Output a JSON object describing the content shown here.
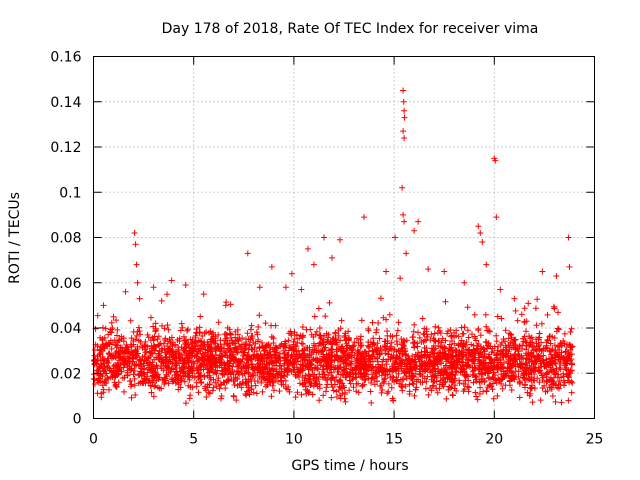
{
  "chart_data": {
    "type": "scatter",
    "title": "Day 178 of 2018, Rate Of TEC Index for receiver vima",
    "xlabel": "GPS time / hours",
    "ylabel": "ROTI / TECUs",
    "xlim": [
      0,
      25
    ],
    "ylim": [
      0,
      0.16
    ],
    "xticks": [
      0,
      5,
      10,
      15,
      20,
      25
    ],
    "xtick_labels": [
      "0",
      "5",
      "10",
      "15",
      "20",
      "25"
    ],
    "yticks": [
      0,
      0.02,
      0.04,
      0.06,
      0.08,
      0.1,
      0.12,
      0.14,
      0.16
    ],
    "ytick_labels": [
      "0",
      "0.02",
      "0.04",
      "0.06",
      "0.08",
      "0.1",
      "0.12",
      "0.14",
      "0.16"
    ],
    "grid": true,
    "marker": "+",
    "color": "#ff0000",
    "series": [
      {
        "name": "ROTI",
        "points": [
          [
            0.2,
            0.032
          ],
          [
            0.5,
            0.05
          ],
          [
            1.0,
            0.045
          ],
          [
            1.6,
            0.056
          ],
          [
            2.05,
            0.082
          ],
          [
            2.1,
            0.077
          ],
          [
            2.15,
            0.068
          ],
          [
            2.2,
            0.06
          ],
          [
            2.3,
            0.053
          ],
          [
            3.0,
            0.058
          ],
          [
            3.4,
            0.052
          ],
          [
            3.9,
            0.061
          ],
          [
            4.6,
            0.059
          ],
          [
            5.5,
            0.055
          ],
          [
            6.6,
            0.05
          ],
          [
            7.7,
            0.073
          ],
          [
            8.3,
            0.058
          ],
          [
            8.9,
            0.067
          ],
          [
            9.6,
            0.058
          ],
          [
            9.9,
            0.064
          ],
          [
            10.7,
            0.075
          ],
          [
            11.0,
            0.068
          ],
          [
            11.5,
            0.08
          ],
          [
            11.9,
            0.071
          ],
          [
            12.3,
            0.079
          ],
          [
            13.5,
            0.089
          ],
          [
            14.6,
            0.065
          ],
          [
            15.05,
            0.08
          ],
          [
            15.3,
            0.062
          ],
          [
            15.4,
            0.102
          ],
          [
            15.45,
            0.145
          ],
          [
            15.48,
            0.14
          ],
          [
            15.5,
            0.136
          ],
          [
            15.52,
            0.133
          ],
          [
            15.45,
            0.127
          ],
          [
            15.5,
            0.124
          ],
          [
            15.45,
            0.09
          ],
          [
            15.5,
            0.087
          ],
          [
            15.6,
            0.073
          ],
          [
            16.0,
            0.083
          ],
          [
            16.2,
            0.087
          ],
          [
            16.7,
            0.066
          ],
          [
            17.5,
            0.065
          ],
          [
            18.5,
            0.06
          ],
          [
            19.2,
            0.085
          ],
          [
            19.3,
            0.082
          ],
          [
            19.4,
            0.078
          ],
          [
            19.6,
            0.068
          ],
          [
            20.0,
            0.115
          ],
          [
            20.05,
            0.114
          ],
          [
            20.1,
            0.089
          ],
          [
            20.3,
            0.057
          ],
          [
            21.0,
            0.053
          ],
          [
            22.4,
            0.065
          ],
          [
            23.1,
            0.063
          ],
          [
            23.7,
            0.08
          ],
          [
            23.75,
            0.067
          ]
        ],
        "bulk": {
          "x_range": [
            0.0,
            23.9
          ],
          "y_range": [
            0.005,
            0.045
          ],
          "typical": 0.02
        }
      }
    ]
  }
}
